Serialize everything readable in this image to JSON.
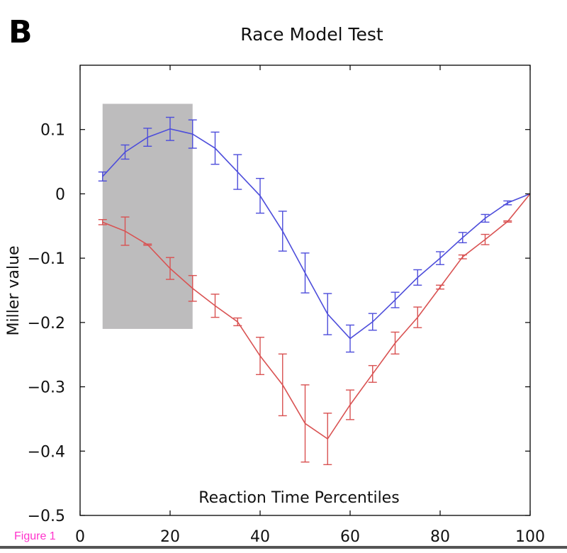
{
  "panel_letter": "B",
  "figure_label": "Figure 1",
  "chart_data": {
    "type": "line",
    "title": "Race Model Test",
    "xlabel": "Reaction Time Percentiles",
    "ylabel": "Miller value",
    "xlim": [
      0,
      100
    ],
    "ylim": [
      -0.5,
      0.2
    ],
    "xticks": [
      0,
      20,
      40,
      60,
      80,
      100
    ],
    "xtick_labels": [
      "0",
      "20",
      "40",
      "60",
      "80",
      "100"
    ],
    "yticks": [
      0.1,
      0,
      -0.1,
      -0.2,
      -0.3,
      -0.4,
      -0.5
    ],
    "ytick_labels": [
      "0.1",
      "0",
      "−0.1",
      "−0.2",
      "−0.3",
      "−0.4",
      "−0.5"
    ],
    "grid": false,
    "shaded_region": {
      "x": [
        5,
        25
      ],
      "y": [
        -0.21,
        0.14
      ],
      "color": "#bdbcbd"
    },
    "x": [
      5,
      10,
      15,
      20,
      25,
      30,
      35,
      40,
      45,
      50,
      55,
      60,
      65,
      70,
      75,
      80,
      85,
      90,
      95,
      100
    ],
    "series": [
      {
        "color": "#4d4ddb",
        "values": [
          0.027,
          0.065,
          0.088,
          0.101,
          0.093,
          0.071,
          0.034,
          -0.003,
          -0.058,
          -0.123,
          -0.187,
          -0.225,
          -0.199,
          -0.165,
          -0.13,
          -0.1,
          -0.068,
          -0.038,
          -0.014,
          0.0
        ],
        "errors": [
          0.007,
          0.011,
          0.014,
          0.018,
          0.022,
          0.025,
          0.027,
          0.027,
          0.031,
          0.031,
          0.032,
          0.021,
          0.013,
          0.012,
          0.012,
          0.01,
          0.008,
          0.006,
          0.003,
          0.0
        ]
      },
      {
        "color": "#d95252",
        "values": [
          -0.044,
          -0.058,
          -0.079,
          -0.116,
          -0.147,
          -0.174,
          -0.199,
          -0.252,
          -0.297,
          -0.357,
          -0.381,
          -0.328,
          -0.28,
          -0.232,
          -0.192,
          -0.145,
          -0.098,
          -0.071,
          -0.043,
          0.0
        ],
        "errors": [
          0.004,
          0.022,
          0.001,
          0.017,
          0.02,
          0.018,
          0.006,
          0.029,
          0.048,
          0.06,
          0.04,
          0.023,
          0.013,
          0.017,
          0.016,
          0.003,
          0.003,
          0.008,
          0.001,
          0.0
        ]
      }
    ]
  }
}
